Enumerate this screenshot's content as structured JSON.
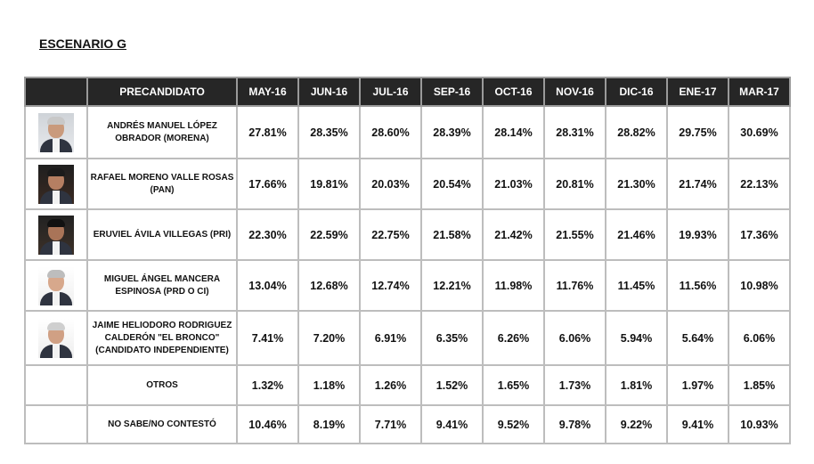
{
  "title": "ESCENARIO G",
  "header": {
    "precandidato": "PRECANDIDATO",
    "months": [
      "MAY-16",
      "JUN-16",
      "JUL-16",
      "SEP-16",
      "OCT-16",
      "NOV-16",
      "DIC-16",
      "ENE-17",
      "MAR-17"
    ]
  },
  "rows": [
    {
      "name": "ANDRÉS MANUEL LÓPEZ OBRADOR (MORENA)",
      "photo_icon": "candidate-portrait",
      "values": [
        "27.81%",
        "28.35%",
        "28.60%",
        "28.39%",
        "28.14%",
        "28.31%",
        "28.82%",
        "29.75%",
        "30.69%"
      ]
    },
    {
      "name": "RAFAEL MORENO VALLE ROSAS (PAN)",
      "photo_icon": "candidate-portrait",
      "values": [
        "17.66%",
        "19.81%",
        "20.03%",
        "20.54%",
        "21.03%",
        "20.81%",
        "21.30%",
        "21.74%",
        "22.13%"
      ]
    },
    {
      "name": "ERUVIEL ÁVILA VILLEGAS (PRI)",
      "photo_icon": "candidate-portrait",
      "values": [
        "22.30%",
        "22.59%",
        "22.75%",
        "21.58%",
        "21.42%",
        "21.55%",
        "21.46%",
        "19.93%",
        "17.36%"
      ]
    },
    {
      "name": "MIGUEL ÁNGEL MANCERA ESPINOSA (PRD O CI)",
      "photo_icon": "candidate-portrait",
      "values": [
        "13.04%",
        "12.68%",
        "12.74%",
        "12.21%",
        "11.98%",
        "11.76%",
        "11.45%",
        "11.56%",
        "10.98%"
      ]
    },
    {
      "name": "JAIME HELIODORO RODRIGUEZ CALDERÓN \"EL BRONCO\" (CANDIDATO INDEPENDIENTE)",
      "photo_icon": "candidate-portrait",
      "values": [
        "7.41%",
        "7.20%",
        "6.91%",
        "6.35%",
        "6.26%",
        "6.06%",
        "5.94%",
        "5.64%",
        "6.06%"
      ]
    },
    {
      "name": "OTROS",
      "photo_icon": "",
      "values": [
        "1.32%",
        "1.18%",
        "1.26%",
        "1.52%",
        "1.65%",
        "1.73%",
        "1.81%",
        "1.97%",
        "1.85%"
      ]
    },
    {
      "name": "NO SABE/NO CONTESTÓ",
      "photo_icon": "",
      "values": [
        "10.46%",
        "8.19%",
        "7.71%",
        "9.41%",
        "9.52%",
        "9.78%",
        "9.22%",
        "9.41%",
        "10.93%"
      ]
    }
  ]
}
